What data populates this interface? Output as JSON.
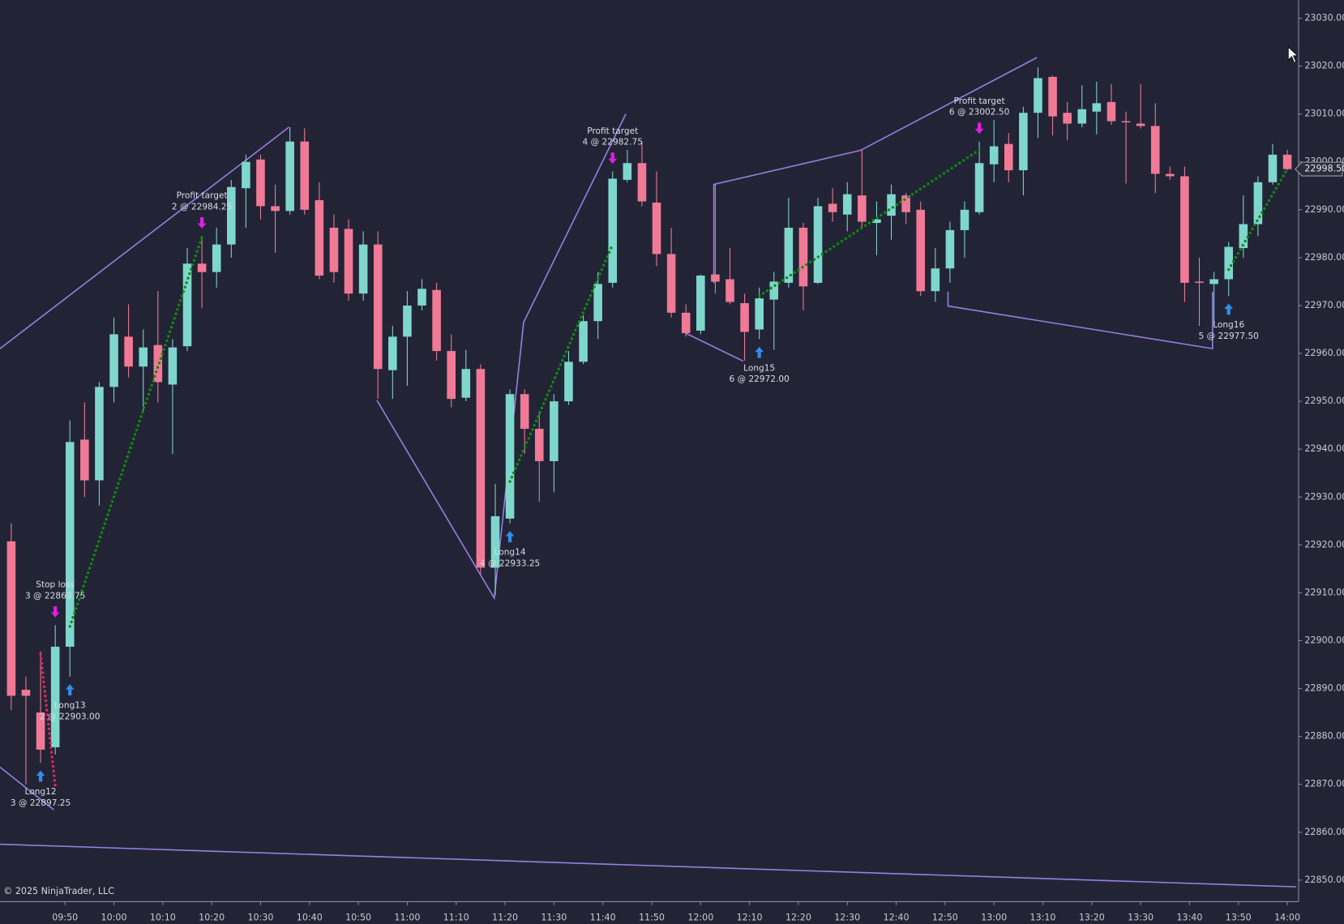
{
  "chart_data": {
    "type": "candlestick",
    "x": [
      579,
      582,
      585,
      588,
      591,
      594,
      597,
      600,
      603,
      606,
      609,
      612,
      615,
      618,
      621,
      624,
      627,
      630,
      633,
      636,
      639,
      642,
      645,
      648,
      651,
      654,
      657,
      660,
      663,
      666,
      669,
      672,
      675,
      678,
      681,
      684,
      687,
      690,
      693,
      696,
      699,
      702,
      705,
      708,
      711,
      714,
      717,
      720,
      723,
      726,
      729,
      732,
      735,
      738,
      741,
      744,
      747,
      750,
      753,
      756,
      759,
      762,
      765,
      768,
      771,
      774,
      777,
      780,
      783,
      786,
      789,
      792,
      795,
      798,
      801,
      804,
      807,
      810,
      813,
      816,
      819,
      822,
      825,
      828,
      831,
      834,
      837,
      840
    ],
    "open": [
      22920.75,
      22889.75,
      22885,
      22877.75,
      22898.75,
      22942,
      22933.5,
      22953,
      22963.5,
      22957.25,
      22961.75,
      22953.5,
      22961.5,
      22978.75,
      22977,
      22982.75,
      22994.5,
      23000.5,
      22990.75,
      22989.75,
      23004.25,
      22992,
      22986.25,
      22986,
      22972.5,
      22982.75,
      22956.5,
      22963.5,
      22970,
      22973.25,
      22960.5,
      22950.75,
      22956.75,
      22915.25,
      22925.5,
      22951.5,
      22944.25,
      22937.5,
      22950,
      22958.25,
      22966.75,
      22974.75,
      22996.25,
      22999.75,
      22991.5,
      22980.75,
      22968.5,
      22964.75,
      22976.5,
      22975.5,
      22970.5,
      22965,
      22971.25,
      22974.75,
      22986.25,
      22974.75,
      22991.25,
      22989,
      22993,
      22987.25,
      22988.75,
      22993,
      22990,
      22973,
      22977.75,
      22985.75,
      22989.5,
      22999.5,
      23003.75,
      22998.25,
      23010.25,
      23017.75,
      23010.25,
      23008,
      23010.5,
      23012.5,
      23008.5,
      23008,
      23007.5,
      22997.5,
      22997,
      22975,
      22974.5,
      22975.5,
      22982,
      22987,
      22995.75,
      23001.5
    ],
    "high": [
      22924.5,
      22892.5,
      22897.75,
      22903.25,
      22946,
      22949.75,
      22954,
      22967.5,
      22970.25,
      22965,
      22973,
      22963,
      22982,
      22984.5,
      22986.25,
      22996.25,
      23001.5,
      23001.5,
      22995.25,
      23007.25,
      23007,
      22995.75,
      22989,
      22988,
      22985.5,
      22985.5,
      22965.75,
      22973,
      22975.5,
      22974.75,
      22964,
      22960.75,
      22957.75,
      22932.75,
      22952.5,
      22952.5,
      22948,
      22951.5,
      22960.5,
      22968,
      22977,
      22998,
      23002.5,
      23004.25,
      22998,
      22986.25,
      22970.25,
      22976.5,
      22995.25,
      22982,
      22972.5,
      22973.75,
      22977,
      22992.5,
      22987.25,
      22992.5,
      22994.5,
      22995.75,
      23002.5,
      22991.75,
      22995.25,
      22993.5,
      22991.75,
      22982,
      22987.5,
      22991.75,
      23004.25,
      23008.75,
      23006,
      23011.5,
      23019.75,
      23018,
      23012.5,
      23016,
      23016.75,
      23016.25,
      23010.5,
      23016.25,
      23012.25,
      22999,
      22999,
      22980,
      22977,
      22983.25,
      22993,
      22997,
      23003.75,
      23002.5
    ],
    "low": [
      22885.5,
      22870,
      22874.5,
      22876.25,
      22892.5,
      22930,
      22928.25,
      22949.75,
      22955,
      22948,
      22949.75,
      22939,
      22960.5,
      22969.5,
      22973.75,
      22980,
      22986.25,
      22988,
      22981,
      22989,
      22989,
      22975.5,
      22974.75,
      22971,
      22971,
      22950.5,
      22950.5,
      22953.25,
      22969,
      22958.5,
      22948.75,
      22950,
      22914,
      22909.5,
      22924.5,
      22939,
      22929,
      22931,
      22949.25,
      22957.75,
      22963,
      22973.75,
      22995.75,
      22990.75,
      22978.25,
      22967.5,
      22963.5,
      22964,
      22972.5,
      22970.25,
      22958.5,
      22963,
      22960.75,
      22973.75,
      22969,
      22974.5,
      22987.5,
      22985.5,
      22986.25,
      22980.5,
      22983.75,
      22987,
      22972,
      22970.75,
      22974.75,
      22980,
      22989,
      22995.75,
      22995.75,
      22993,
      23005,
      23005.5,
      23004.5,
      23007.25,
      23005.75,
      23007.75,
      22995.5,
      23007,
      22993.5,
      22996.25,
      22970.75,
      22965.75,
      22966,
      22972,
      22980,
      22984.5,
      22995.25,
      22998.25
    ],
    "close": [
      22888.5,
      22888.5,
      22877.25,
      22898.75,
      22941.5,
      22933.5,
      22953,
      22964,
      22957.25,
      22961.25,
      22954,
      22961.25,
      22978.75,
      22977,
      22982.75,
      22994.75,
      23000,
      22990.75,
      22989.75,
      23004.25,
      22990,
      22976.25,
      22977,
      22972.5,
      22982.75,
      22956.75,
      22963.5,
      22970,
      22973.5,
      22960.5,
      22950.5,
      22956.75,
      22915.25,
      22926,
      22951.5,
      22944.25,
      22937.5,
      22950,
      22958.25,
      22966.75,
      22974.5,
      22996.5,
      22999.75,
      22991.75,
      22980.75,
      22968.5,
      22964.25,
      22976.25,
      22975,
      22970.75,
      22964.5,
      22971.5,
      22975,
      22986.25,
      22974,
      22990.75,
      22989.5,
      22993.25,
      22987.5,
      22988,
      22993.25,
      22989.5,
      22973,
      22977.75,
      22985.75,
      22990,
      22999.75,
      23003.25,
      22998.25,
      23010.25,
      23017.5,
      23009.5,
      23008,
      23011,
      23012.25,
      23008.5,
      23008.25,
      23007.5,
      22997.5,
      22997,
      22974.75,
      22974.75,
      22975.5,
      22982.25,
      22987,
      22995.75,
      23001.5,
      22998.5
    ],
    "up_color": "#7fd6cc",
    "down_color": "#f07a96",
    "xlim": [
      576.7,
      842.3
    ],
    "xticks": [
      {
        "value": 590,
        "label": "09:50"
      },
      {
        "value": 600,
        "label": "10:00"
      },
      {
        "value": 610,
        "label": "10:10"
      },
      {
        "value": 620,
        "label": "10:20"
      },
      {
        "value": 630,
        "label": "10:30"
      },
      {
        "value": 640,
        "label": "10:40"
      },
      {
        "value": 650,
        "label": "10:50"
      },
      {
        "value": 660,
        "label": "11:00"
      },
      {
        "value": 670,
        "label": "11:10"
      },
      {
        "value": 680,
        "label": "11:20"
      },
      {
        "value": 690,
        "label": "11:30"
      },
      {
        "value": 700,
        "label": "11:40"
      },
      {
        "value": 710,
        "label": "11:50"
      },
      {
        "value": 720,
        "label": "12:00"
      },
      {
        "value": 730,
        "label": "12:10"
      },
      {
        "value": 740,
        "label": "12:20"
      },
      {
        "value": 750,
        "label": "12:30"
      },
      {
        "value": 760,
        "label": "12:40"
      },
      {
        "value": 770,
        "label": "12:50"
      },
      {
        "value": 780,
        "label": "13:00"
      },
      {
        "value": 790,
        "label": "13:10"
      },
      {
        "value": 800,
        "label": "13:20"
      },
      {
        "value": 810,
        "label": "13:30"
      },
      {
        "value": 820,
        "label": "13:40"
      },
      {
        "value": 830,
        "label": "13:50"
      },
      {
        "value": 840,
        "label": "14:00"
      }
    ],
    "ylim": [
      22845.5,
      23033.8
    ],
    "yticks": [
      {
        "value": 22850,
        "label": "22850.00"
      },
      {
        "value": 22860,
        "label": "22860.00"
      },
      {
        "value": 22870,
        "label": "22870.00"
      },
      {
        "value": 22880,
        "label": "22880.00"
      },
      {
        "value": 22890,
        "label": "22890.00"
      },
      {
        "value": 22900,
        "label": "22900.00"
      },
      {
        "value": 22910,
        "label": "22910.00"
      },
      {
        "value": 22920,
        "label": "22920.00"
      },
      {
        "value": 22930,
        "label": "22930.00"
      },
      {
        "value": 22940,
        "label": "22940.00"
      },
      {
        "value": 22950,
        "label": "22950.00"
      },
      {
        "value": 22960,
        "label": "22960.00"
      },
      {
        "value": 22970,
        "label": "22970.00"
      },
      {
        "value": 22980,
        "label": "22980.00"
      },
      {
        "value": 22990,
        "label": "22990.00"
      },
      {
        "value": 23000,
        "label": "23000.00"
      },
      {
        "value": 23010,
        "label": "23010.00"
      },
      {
        "value": 23020,
        "label": "23020.00"
      },
      {
        "value": 23030,
        "label": "23030.00"
      }
    ],
    "grid": false,
    "last_price": {
      "value": 22998.5,
      "label": "22998.50"
    },
    "swing_color": "#9b7de3",
    "swings": [
      {
        "x": [
          576.7,
          635.8
        ],
        "y": [
          22961,
          23007.25
        ]
      },
      {
        "x": [
          653.8,
          677.8,
          683.8,
          704.7
        ],
        "y": [
          22950.2,
          22908.9,
          22966.5,
          23010
        ]
      },
      {
        "x": [
          716.8,
          728.7
        ],
        "y": [
          22964.3,
          22958.4
        ]
      },
      {
        "x": [
          722.7,
          722.7,
          752.7,
          788.8
        ],
        "y": [
          22974.7,
          22995.3,
          23002.4,
          23021.8
        ]
      },
      {
        "x": [
          770.6,
          770.6,
          824.7,
          824.7
        ],
        "y": [
          22972.9,
          22969.9,
          22961,
          22972.9
        ]
      },
      {
        "x": [
          576.7,
          587.7
        ],
        "y": [
          22873.6,
          22864.7
        ]
      },
      {
        "x": [
          576.7,
          841.8
        ],
        "y": [
          22857.5,
          22848.6
        ]
      }
    ],
    "entry_color": "#2f8ff0",
    "exit_color": "#e020e0",
    "win_color": "#0f8a0f",
    "loss_color": "#e8245e",
    "markers": [
      {
        "label": "Long12",
        "detail": "3 @ 22897.25",
        "x": 585,
        "price": 22897.25,
        "kind": "entry"
      },
      {
        "label": "Stop loss",
        "detail": "3 @ 22869.75",
        "x": 588,
        "price": 22869.75,
        "kind": "exit"
      },
      {
        "label": "Long13",
        "detail": "2 @ 22903.00",
        "x": 591,
        "price": 22903,
        "kind": "entry"
      },
      {
        "label": "Profit target",
        "detail": "2 @ 22984.25",
        "x": 618,
        "price": 22984.25,
        "kind": "exit"
      },
      {
        "label": "Long14",
        "detail": "4 @ 22933.25",
        "x": 681,
        "price": 22933.25,
        "kind": "entry"
      },
      {
        "label": "Profit target",
        "detail": "4 @ 22982.75",
        "x": 702,
        "price": 22982.75,
        "kind": "exit"
      },
      {
        "label": "Long15",
        "detail": "6 @ 22972.00",
        "x": 732,
        "price": 22972,
        "kind": "entry"
      },
      {
        "label": "Profit target",
        "detail": "6 @ 23002.50",
        "x": 777,
        "price": 23002.5,
        "kind": "exit"
      },
      {
        "label": "Long16",
        "detail": "5 @ 22977.50",
        "x": 828,
        "price": 22977.5,
        "kind": "entry"
      }
    ],
    "copyright": "© 2025 NinjaTrader, LLC"
  }
}
